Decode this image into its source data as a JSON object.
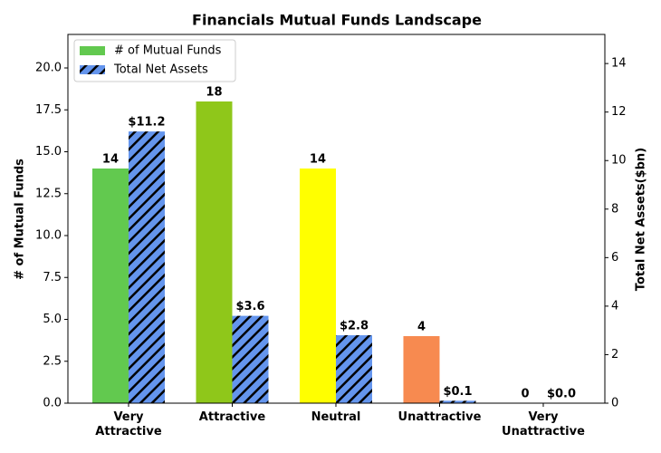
{
  "chart_data": {
    "type": "bar",
    "title": "Financials Mutual Funds Landscape",
    "categories": [
      "Very Attractive",
      "Attractive",
      "Neutral",
      "Unattractive",
      "Very Unattractive"
    ],
    "ylabel": "# of Mutual Funds",
    "y2label": "Total Net Assets($bn)",
    "series": [
      {
        "name": "# of Mutual Funds",
        "color": "#62c94f",
        "colors": [
          "#62c94f",
          "#8fc71a",
          "#ffff00",
          "#f78a50",
          "#e8452c"
        ],
        "values": [
          14,
          18,
          14,
          4,
          0
        ]
      },
      {
        "name": "Total Net Assets",
        "color": "#6495ed",
        "hatch": "//",
        "axis": "y2",
        "values": [
          11.2,
          3.6,
          2.8,
          0.1,
          0.0
        ],
        "value_labels": [
          "$11.2",
          "$3.6",
          "$2.8",
          "$0.1",
          "$0.0"
        ]
      }
    ],
    "ylim": [
      0,
      22
    ],
    "yticks": [
      {
        "value": 0,
        "label": "0.0"
      },
      {
        "value": 2.5,
        "label": "2.5"
      },
      {
        "value": 5,
        "label": "5.0"
      },
      {
        "value": 7.5,
        "label": "7.5"
      },
      {
        "value": 10,
        "label": "10.0"
      },
      {
        "value": 12.5,
        "label": "12.5"
      },
      {
        "value": 15,
        "label": "15.0"
      },
      {
        "value": 17.5,
        "label": "17.5"
      },
      {
        "value": 20,
        "label": "20.0"
      }
    ],
    "y2lim": [
      0,
      15.2
    ],
    "y2ticks": [
      0,
      2,
      4,
      6,
      8,
      10,
      12,
      14
    ],
    "legend": "upper left"
  }
}
